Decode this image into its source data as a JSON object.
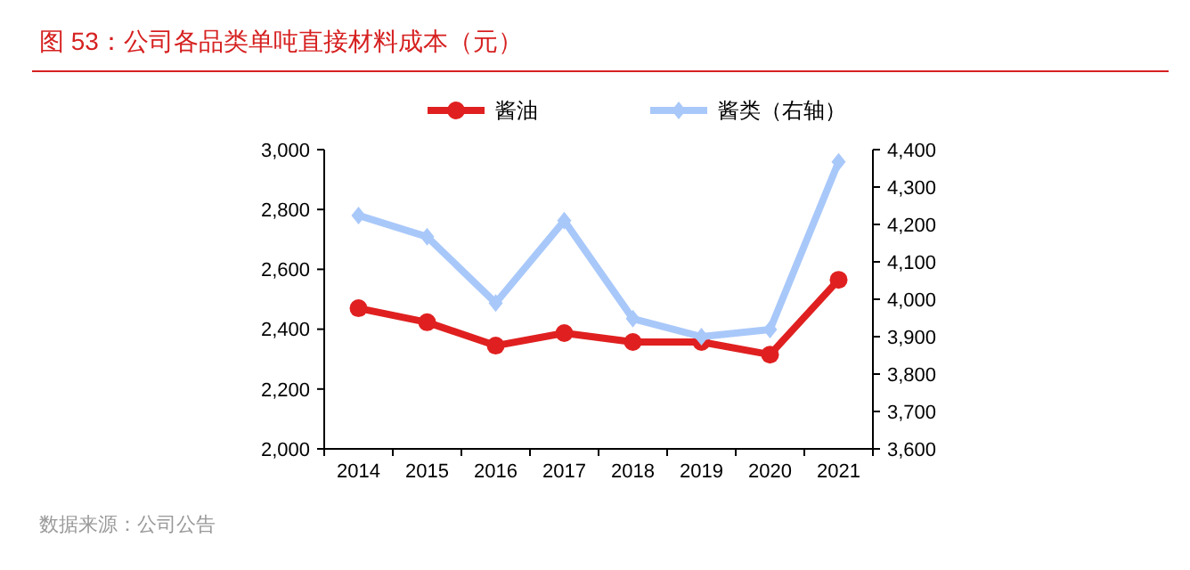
{
  "chart_data": {
    "type": "line",
    "title": "图 53：公司各品类单吨直接材料成本（元）",
    "categories": [
      "2014",
      "2015",
      "2016",
      "2017",
      "2018",
      "2019",
      "2020",
      "2021"
    ],
    "series": [
      {
        "name": "酱油",
        "color": "#e02020",
        "values": [
          2470,
          2423,
          2345,
          2387,
          2357,
          2357,
          2315,
          2565
        ],
        "marker": "circle"
      },
      {
        "name": "酱类（右轴）",
        "color": "#a9c8fa",
        "values": [
          4224,
          4167,
          3990,
          4210,
          3948,
          3900,
          3919,
          4367
        ],
        "axis": "y2",
        "marker": "diamond"
      }
    ],
    "ylim": [
      2000,
      3000
    ],
    "yticks": [
      {
        "value": 2000,
        "label": "2,000"
      },
      {
        "value": 2200,
        "label": "2,200"
      },
      {
        "value": 2400,
        "label": "2,400"
      },
      {
        "value": 2600,
        "label": "2,600"
      },
      {
        "value": 2800,
        "label": "2,800"
      },
      {
        "value": 3000,
        "label": "3,000"
      }
    ],
    "y2lim": [
      3600,
      4400
    ],
    "y2ticks": [
      {
        "value": 3600,
        "label": "3,600"
      },
      {
        "value": 3700,
        "label": "3,700"
      },
      {
        "value": 3800,
        "label": "3,800"
      },
      {
        "value": 3900,
        "label": "3,900"
      },
      {
        "value": 4000,
        "label": "4,000"
      },
      {
        "value": 4100,
        "label": "4,100"
      },
      {
        "value": 4200,
        "label": "4,200"
      },
      {
        "value": 4300,
        "label": "4,300"
      },
      {
        "value": 4400,
        "label": "4,400"
      }
    ],
    "legend": "top",
    "grid": false,
    "annotations": [
      "数据来源：公司公告"
    ]
  }
}
